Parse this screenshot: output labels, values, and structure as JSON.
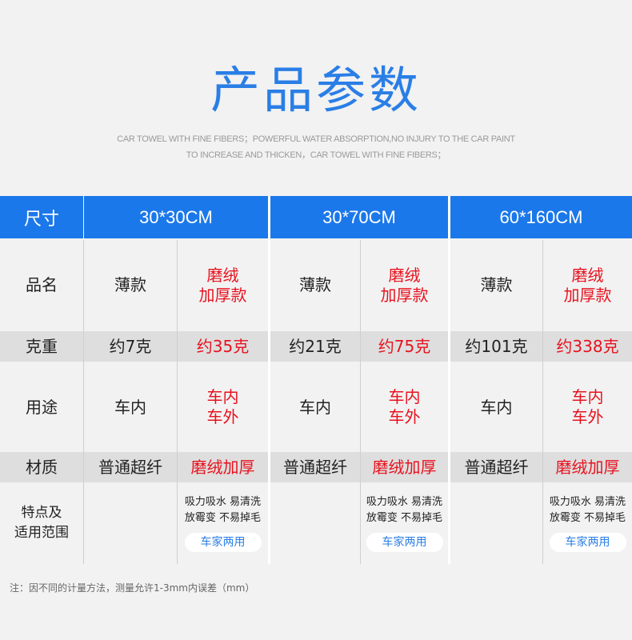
{
  "title": "产品参数",
  "subtitle": [
    "CAR TOWEL WITH FINE FIBERS；POWERFUL WATER ABSORPTION,NO INJURY TO THE CAR PAINT",
    "TO INCREASE AND THICKEN，CAR TOWEL WITH FINE FIBERS；"
  ],
  "table": {
    "size_label": "尺寸",
    "sizes": [
      "30*30CM",
      "30*70CM",
      "60*160CM"
    ],
    "rows": {
      "name": {
        "label": "品名",
        "thin": "薄款",
        "thick": [
          "磨绒",
          "加厚款"
        ]
      },
      "weight": {
        "label": "克重",
        "values": [
          "约7克",
          "约35克",
          "约21克",
          "约75克",
          "约101克",
          "约338克"
        ]
      },
      "usage": {
        "label": "用途",
        "thin": "车内",
        "thick": [
          "车内",
          "车外"
        ]
      },
      "material": {
        "label": "材质",
        "thin": "普通超纤",
        "thick": "磨绒加厚"
      },
      "features": {
        "label": [
          "特点及",
          "适用范围"
        ],
        "lines": [
          "吸力吸水 易清洗",
          "放霉变 不易掉毛"
        ],
        "badge": "车家两用"
      }
    }
  },
  "note": "注：因不同的计量方法，测量允许1-3mm内误差（mm）",
  "colors": {
    "header": "#1b78ea",
    "accent_red": "#e8121e",
    "title": "#2a7ee6"
  }
}
